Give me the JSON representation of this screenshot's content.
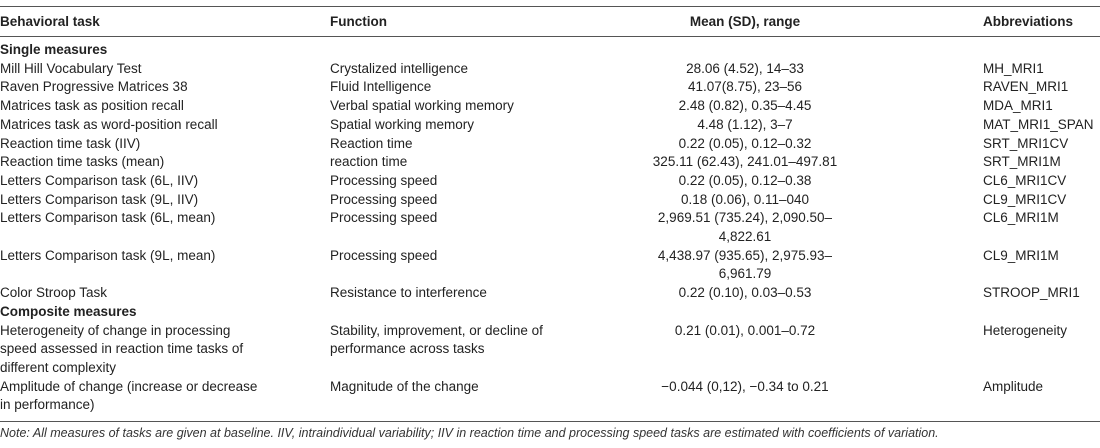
{
  "table": {
    "header": [
      "Behavioral task",
      "Function",
      "Mean (SD), range",
      "Abbreviations"
    ],
    "sections": [
      {
        "title": "Single measures",
        "rows": [
          [
            [
              "Mill Hill Vocabulary Test"
            ],
            [
              "Crystalized intelligence"
            ],
            "28.06 (4.52), 14–33",
            "MH_MRI1"
          ],
          [
            [
              "Raven Progressive Matrices 38"
            ],
            [
              "Fluid Intelligence"
            ],
            "41.07(8.75), 23–56",
            "RAVEN_MRI1"
          ],
          [
            [
              "Matrices task as position recall"
            ],
            [
              "Verbal spatial working memory"
            ],
            "2.48 (0.82), 0.35–4.45",
            "MDA_MRI1"
          ],
          [
            [
              "Matrices task as word-position recall"
            ],
            [
              "Spatial working memory"
            ],
            "4.48 (1.12), 3–7",
            "MAT_MRI1_SPAN"
          ],
          [
            [
              "Reaction time task (IIV)"
            ],
            [
              "Reaction time"
            ],
            "0.22 (0.05), 0.12–0.32",
            "SRT_MRI1CV"
          ],
          [
            [
              "Reaction time tasks (mean)"
            ],
            [
              "reaction time"
            ],
            "325.11 (62.43), 241.01–497.81",
            "SRT_MRI1M"
          ],
          [
            [
              "Letters Comparison task (6L, IIV)"
            ],
            [
              "Processing speed"
            ],
            "0.22 (0.05), 0.12–0.38",
            "CL6_MRI1CV"
          ],
          [
            [
              "Letters Comparison task (9L, IIV)"
            ],
            [
              "Processing speed"
            ],
            "0.18 (0.06), 0.11–040",
            "CL9_MRI1CV"
          ],
          [
            [
              "Letters Comparison task (6L, mean)"
            ],
            [
              "Processing speed"
            ],
            "2,969.51 (735.24), 2,090.50–4,822.61",
            "CL6_MRI1M"
          ],
          [
            [
              "Letters Comparison task (9L, mean)"
            ],
            [
              "Processing speed"
            ],
            "4,438.97 (935.65), 2,975.93–6,961.79",
            "CL9_MRI1M"
          ],
          [
            [
              "Color Stroop Task"
            ],
            [
              "Resistance to interference"
            ],
            "0.22 (0.10), 0.03–0.53",
            "STROOP_MRI1"
          ]
        ]
      },
      {
        "title": "Composite measures",
        "rows": [
          [
            [
              "Heterogeneity of change in processing",
              "speed assessed in reaction time tasks of",
              "different complexity"
            ],
            [
              "Stability, improvement, or decline of",
              "performance across tasks"
            ],
            "0.21 (0.01), 0.001–0.72",
            "Heterogeneity"
          ],
          [
            [
              "Amplitude of change (increase or decrease",
              "in performance)"
            ],
            [
              "Magnitude of the change"
            ],
            "−0.044 (0,12), −0.34 to 0.21",
            "Amplitude"
          ]
        ]
      }
    ],
    "note": "Note: All measures of tasks are given at baseline. IIV, intraindividual variability; IIV in reaction time and processing speed tasks are estimated with coefficients of variation."
  }
}
